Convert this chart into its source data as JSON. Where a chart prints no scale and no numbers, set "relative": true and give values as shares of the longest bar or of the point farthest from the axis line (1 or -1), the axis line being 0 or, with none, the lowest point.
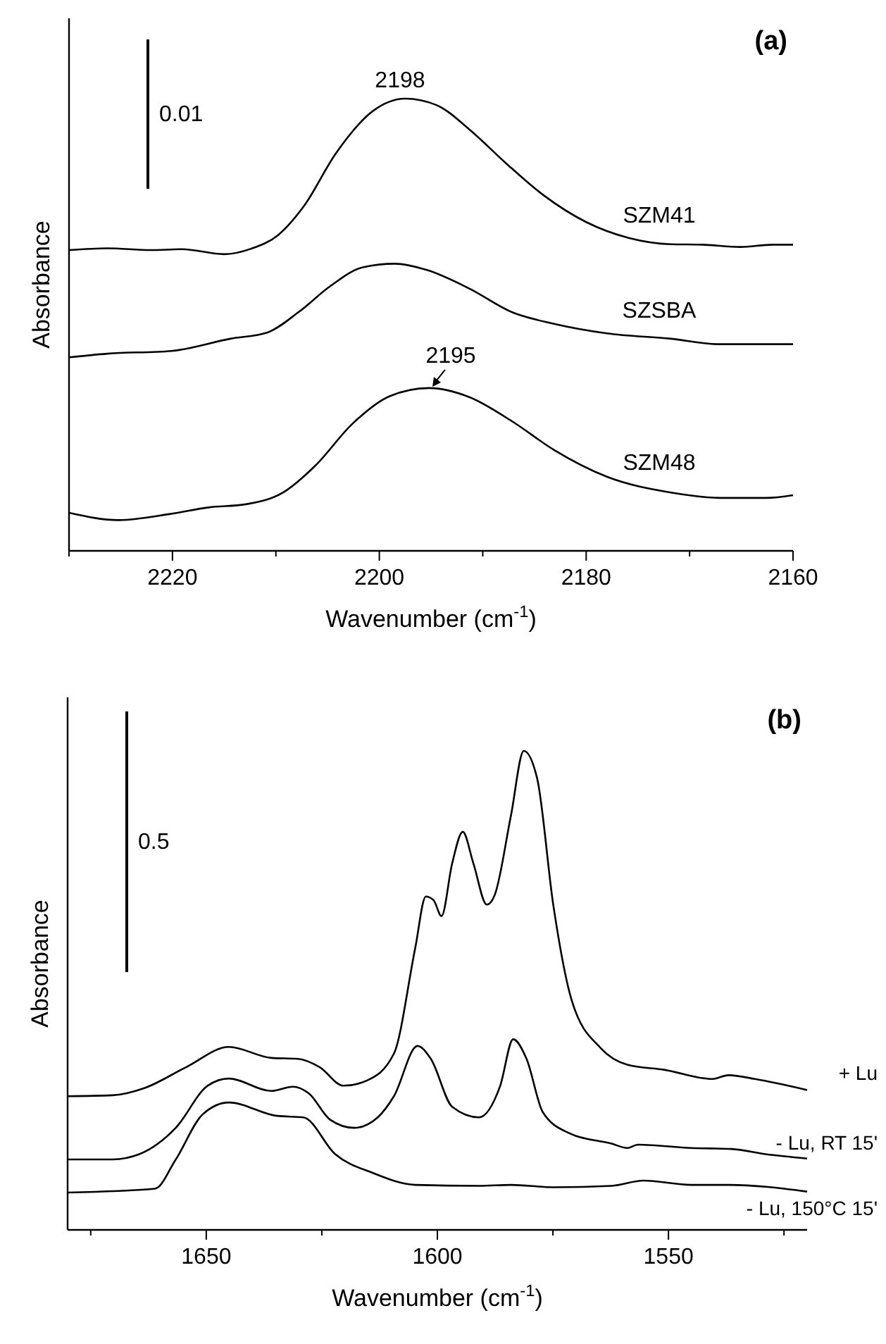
{
  "chart_data": [
    {
      "type": "line",
      "title": "(a)",
      "xlabel": "Wavenumber (cm$^{-1}$)",
      "ylabel": "Absorbance",
      "relative": true,
      "tick_labels": "x",
      "xlim": [
        2230,
        2160
      ],
      "xticks": [
        {
          "value": 2230,
          "label": null
        },
        2220,
        {
          "value": 2210,
          "label": null
        },
        2200,
        {
          "value": 2190,
          "label": null
        },
        2180,
        {
          "value": 2170,
          "label": null
        },
        2160
      ],
      "annotations": [
        "0.01",
        {
          "text": "2198",
          "x": 2198,
          "y": 1
        },
        {
          "text": "2195",
          "x": 2195,
          "y": 0.36
        }
      ],
      "series": [
        {
          "name": "SZM41",
          "color": "#000000",
          "x": [
            2230,
            2226.3,
            2222.1,
            2219.1,
            2215,
            2212.4,
            2209.8,
            2207.3,
            2204.2,
            2200.6,
            2197.5,
            2194.4,
            2191.3,
            2187.7,
            2184.1,
            2180,
            2175.9,
            2171.8,
            2168.7,
            2165.1,
            2162,
            2160
          ],
          "values": [
            0.665,
            0.669,
            0.665,
            0.667,
            0.656,
            0.668,
            0.698,
            0.762,
            0.879,
            0.973,
            1,
            0.985,
            0.932,
            0.856,
            0.786,
            0.727,
            0.692,
            0.678,
            0.677,
            0.672,
            0.677,
            0.677
          ]
        },
        {
          "name": "SZSBA",
          "color": "#000000",
          "x": [
            2230,
            2226.3,
            2220.1,
            2214.4,
            2210.8,
            2207.8,
            2204.7,
            2201.6,
            2198.5,
            2195.4,
            2191.3,
            2187.2,
            2183.1,
            2178,
            2171.8,
            2167.2,
            2160
          ],
          "values": [
            0.428,
            0.436,
            0.442,
            0.469,
            0.483,
            0.528,
            0.586,
            0.627,
            0.635,
            0.621,
            0.58,
            0.528,
            0.502,
            0.481,
            0.469,
            0.457,
            0.457
          ]
        },
        {
          "name": "SZM48",
          "color": "#000000",
          "x": [
            2230,
            2225.2,
            2220.1,
            2216.5,
            2212.9,
            2209.3,
            2206.2,
            2202.6,
            2199,
            2195.2,
            2191.3,
            2187.2,
            2183.1,
            2178,
            2171.8,
            2166.7,
            2162.6,
            2160
          ],
          "values": [
            0.084,
            0.068,
            0.082,
            0.096,
            0.103,
            0.129,
            0.188,
            0.281,
            0.342,
            0.36,
            0.34,
            0.287,
            0.223,
            0.164,
            0.129,
            0.117,
            0.117,
            0.123
          ]
        }
      ]
    },
    {
      "type": "line",
      "title": "(b)",
      "xlabel": "Wavenumber (cm$^{-1}$)",
      "ylabel": "Absorbance",
      "relative": true,
      "tick_labels": "x",
      "xlim": [
        1680,
        1520
      ],
      "xticks": [
        {
          "value": 1675,
          "label": null
        },
        1650,
        {
          "value": 1625,
          "label": null
        },
        1600,
        {
          "value": 1575,
          "label": null
        },
        1550,
        {
          "value": 1525,
          "label": null
        }
      ],
      "annotations": [
        "0.5"
      ],
      "series": [
        {
          "name": "+ Lu",
          "color": "#000000",
          "x": [
            1680,
            1670.3,
            1663.4,
            1654.3,
            1645.1,
            1635.9,
            1630.1,
            1625.5,
            1620.3,
            1615.2,
            1609.4,
            1604.8,
            1602.5,
            1600.8,
            1599.1,
            1596.8,
            1594.5,
            1592.2,
            1589.3,
            1587.6,
            1584.1,
            1581.3,
            1578.4,
            1574.9,
            1570.9,
            1564.6,
            1558.9,
            1550.8,
            1540.5,
            1537,
            1531.3,
            1520
          ],
          "values": [
            0.279,
            0.281,
            0.296,
            0.34,
            0.382,
            0.359,
            0.357,
            0.34,
            0.301,
            0.312,
            0.368,
            0.588,
            0.696,
            0.688,
            0.655,
            0.765,
            0.831,
            0.765,
            0.679,
            0.699,
            0.864,
            1,
            0.942,
            0.677,
            0.478,
            0.379,
            0.345,
            0.334,
            0.315,
            0.323,
            0.315,
            0.292
          ]
        },
        {
          "name": "- Lu, RT 15'",
          "color": "#000000",
          "x": [
            1680,
            1670.3,
            1664.5,
            1656.6,
            1649.7,
            1645.1,
            1635.9,
            1631.3,
            1627.8,
            1623.2,
            1618,
            1612.9,
            1609.4,
            1604.3,
            1601.4,
            1596.8,
            1591,
            1586.4,
            1583.6,
            1580.7,
            1577.2,
            1571.5,
            1562.3,
            1558.9,
            1556.6,
            1545.1,
            1536.4,
            1529,
            1520
          ],
          "values": [
            0.147,
            0.147,
            0.158,
            0.213,
            0.301,
            0.316,
            0.29,
            0.299,
            0.285,
            0.23,
            0.213,
            0.235,
            0.279,
            0.384,
            0.357,
            0.257,
            0.235,
            0.301,
            0.398,
            0.357,
            0.246,
            0.202,
            0.18,
            0.171,
            0.178,
            0.171,
            0.169,
            0.158,
            0.149
          ]
        },
        {
          "name": "- Lu, 150°C 15'",
          "color": "#000000",
          "x": [
            1680,
            1661.1,
            1656.6,
            1650.8,
            1645.1,
            1634.7,
            1629,
            1622.1,
            1614,
            1604.8,
            1591,
            1584.1,
            1574.9,
            1562.3,
            1555.4,
            1545.1,
            1537,
            1520
          ],
          "values": [
            0.078,
            0.086,
            0.147,
            0.241,
            0.266,
            0.238,
            0.235,
            0.158,
            0.119,
            0.094,
            0.092,
            0.094,
            0.089,
            0.092,
            0.103,
            0.094,
            0.094,
            0.08
          ]
        }
      ]
    }
  ]
}
